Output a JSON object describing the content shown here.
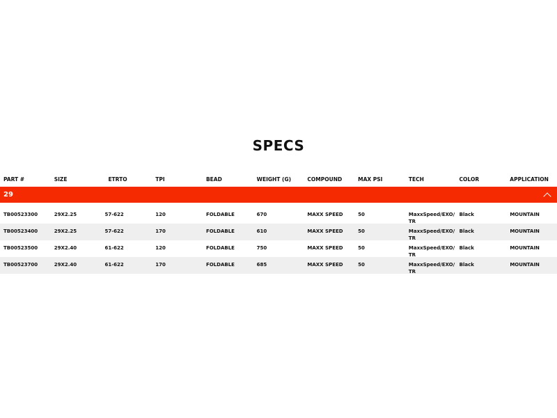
{
  "title": "SPECS",
  "columns": [
    "PART #",
    "SIZE",
    "ETRTO",
    "TPI",
    "BEAD",
    "WEIGHT (G)",
    "COMPOUND",
    "MAX PSI",
    "TECH",
    "COLOR",
    "APPLICATION"
  ],
  "group": {
    "label": "29",
    "icon": "chevron-up-icon",
    "color": "#f52a00"
  },
  "rows": [
    [
      "TB00523300",
      "29X2.25",
      "57-622",
      "120",
      "FOLDABLE",
      "670",
      "MAXX SPEED",
      "50",
      "MaxxSpeed/EXO/ TR",
      "Black",
      "MOUNTAIN"
    ],
    [
      "TB00523400",
      "29X2.25",
      "57-622",
      "170",
      "FOLDABLE",
      "610",
      "MAXX SPEED",
      "50",
      "MaxxSpeed/EXO/ TR",
      "Black",
      "MOUNTAIN"
    ],
    [
      "TB00523500",
      "29X2.40",
      "61-622",
      "120",
      "FOLDABLE",
      "750",
      "MAXX SPEED",
      "50",
      "MaxxSpeed/EXO/ TR",
      "Black",
      "MOUNTAIN"
    ],
    [
      "TB00523700",
      "29X2.40",
      "61-622",
      "170",
      "FOLDABLE",
      "685",
      "MAXX SPEED",
      "50",
      "MaxxSpeed/EXO/ TR",
      "Black",
      "MOUNTAIN"
    ]
  ]
}
